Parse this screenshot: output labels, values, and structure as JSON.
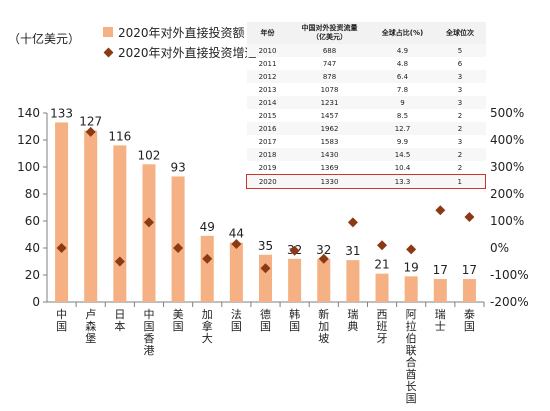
{
  "colors": {
    "bar": "#f5b083",
    "marker": "#8b3a14",
    "axis": "#7f7f7f",
    "highlight": "#d0342c"
  },
  "unit_label": "（十亿美元）",
  "legend": [
    {
      "label": "2020年对外直接投资额",
      "kind": "bar"
    },
    {
      "label": "2020年对外直接投资增速",
      "kind": "diamond"
    }
  ],
  "table": {
    "headers": [
      "年份",
      "中国对外投资流量\n（亿美元）",
      "全球占比(%)",
      "全球位次"
    ],
    "rows": [
      [
        "2010",
        "688",
        "4.9",
        "5"
      ],
      [
        "2011",
        "747",
        "4.8",
        "6"
      ],
      [
        "2012",
        "878",
        "6.4",
        "3"
      ],
      [
        "2013",
        "1078",
        "7.8",
        "3"
      ],
      [
        "2014",
        "1231",
        "9",
        "3"
      ],
      [
        "2015",
        "1457",
        "8.5",
        "2"
      ],
      [
        "2016",
        "1962",
        "12.7",
        "2"
      ],
      [
        "2017",
        "1583",
        "9.9",
        "3"
      ],
      [
        "2018",
        "1430",
        "14.5",
        "2"
      ],
      [
        "2019",
        "1369",
        "10.4",
        "2"
      ],
      [
        "2020",
        "1330",
        "13.3",
        "1"
      ]
    ],
    "highlight_row": 10
  },
  "chart_data": {
    "type": "bar",
    "categories": [
      "中国",
      "卢森堡",
      "日本",
      "中国香港",
      "美国",
      "加拿大",
      "法国",
      "德国",
      "韩国",
      "新加坡",
      "瑞典",
      "西班牙",
      "阿拉伯联合酋长国",
      "瑞士",
      "泰国"
    ],
    "series": [
      {
        "name": "2020年对外直接投资额",
        "type": "bar",
        "axis": "left",
        "values": [
          133,
          127,
          116,
          102,
          93,
          49,
          44,
          35,
          32,
          32,
          31,
          21,
          19,
          17,
          17
        ],
        "labels": [
          "133",
          "127",
          "116",
          "102",
          "93",
          "49",
          "44",
          "35",
          "32",
          "32",
          "31",
          "21",
          "19",
          "17",
          "17"
        ]
      },
      {
        "name": "2020年对外直接投资增速",
        "type": "scatter",
        "axis": "right",
        "values": [
          0,
          430,
          -50,
          95,
          0,
          -40,
          15,
          -75,
          -10,
          -40,
          95,
          10,
          -5,
          140,
          115
        ]
      }
    ],
    "y_left": {
      "min": 0,
      "max": 140,
      "step": 20,
      "ticks": [
        "0",
        "20",
        "40",
        "60",
        "80",
        "100",
        "120",
        "140"
      ]
    },
    "y_right": {
      "min": -200,
      "max": 500,
      "step": 100,
      "ticks": [
        "-200%",
        "-100%",
        "0%",
        "100%",
        "200%",
        "300%",
        "400%",
        "500%"
      ]
    },
    "grid": false
  }
}
